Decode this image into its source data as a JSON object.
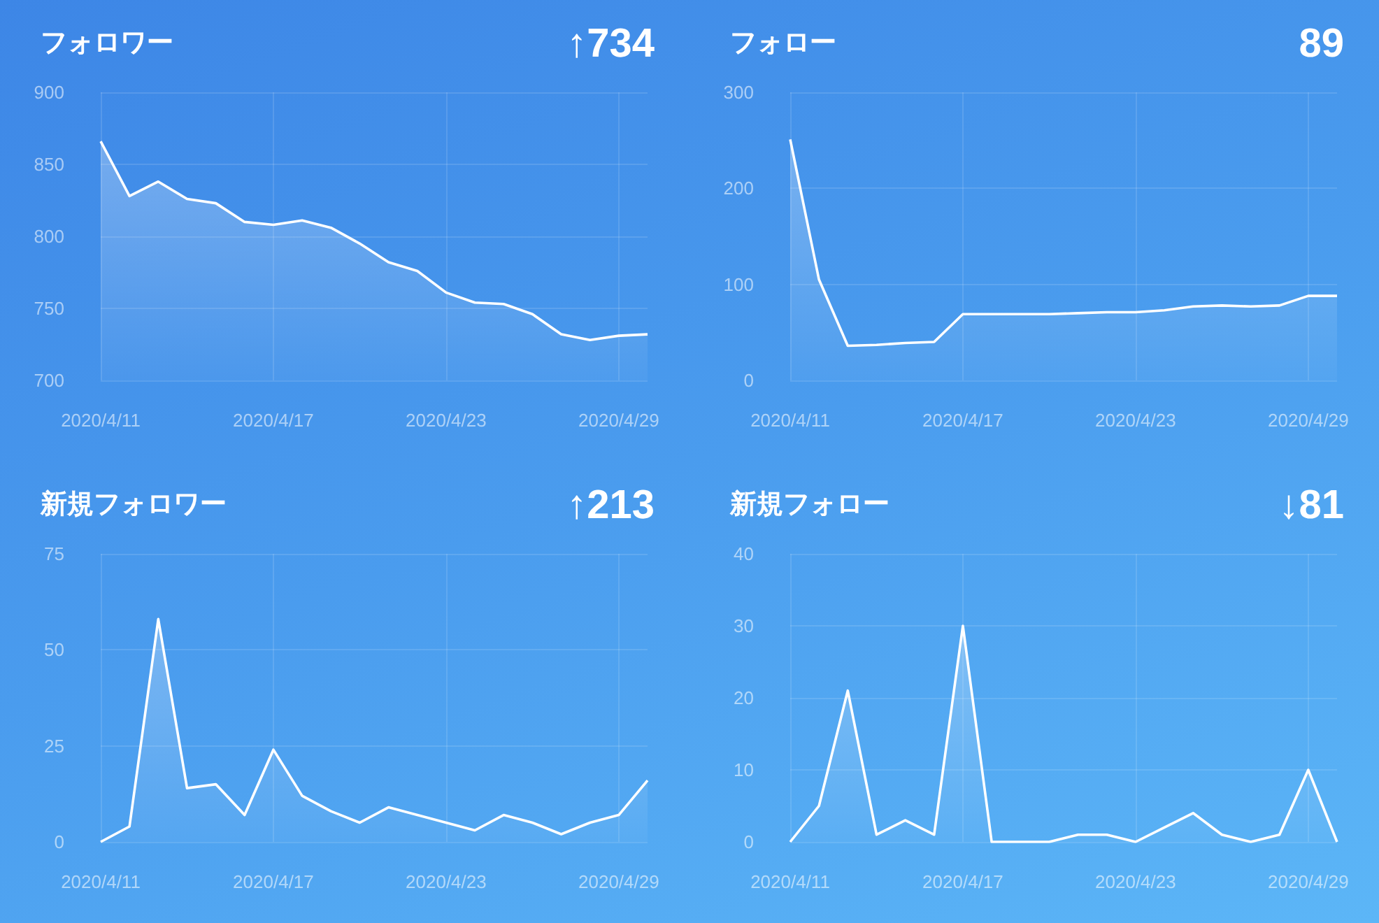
{
  "chart_data": [
    {
      "type": "area",
      "title": "フォロワー",
      "annotations": [
        "↑734"
      ],
      "categories": [
        "2020/4/11",
        null,
        null,
        null,
        null,
        null,
        "2020/4/17",
        null,
        null,
        null,
        null,
        null,
        "2020/4/23",
        null,
        null,
        null,
        null,
        null,
        "2020/4/29",
        null
      ],
      "series": [
        {
          "color": "#ffffff",
          "values": [
            866,
            828,
            838,
            826,
            823,
            810,
            808,
            811,
            806,
            795,
            782,
            776,
            761,
            754,
            753,
            746,
            732,
            728,
            731,
            732
          ]
        }
      ],
      "ylim": [
        700,
        900
      ],
      "yticks": [
        700,
        750,
        800,
        850,
        900
      ],
      "grid": true,
      "marker": "none"
    },
    {
      "type": "area",
      "title": "フォロー",
      "annotations": [
        "89"
      ],
      "categories": [
        "2020/4/11",
        null,
        null,
        null,
        null,
        null,
        "2020/4/17",
        null,
        null,
        null,
        null,
        null,
        "2020/4/23",
        null,
        null,
        null,
        null,
        null,
        "2020/4/29",
        null
      ],
      "series": [
        {
          "color": "#ffffff",
          "values": [
            251,
            105,
            36,
            37,
            39,
            40,
            69,
            69,
            69,
            69,
            70,
            71,
            71,
            73,
            77,
            78,
            77,
            78,
            88,
            88
          ]
        }
      ],
      "ylim": [
        0,
        300
      ],
      "yticks": [
        0,
        100,
        200,
        300
      ],
      "grid": true,
      "marker": "none"
    },
    {
      "type": "area",
      "title": "新規フォロワー",
      "annotations": [
        "↑213"
      ],
      "categories": [
        "2020/4/11",
        null,
        null,
        null,
        null,
        null,
        "2020/4/17",
        null,
        null,
        null,
        null,
        null,
        "2020/4/23",
        null,
        null,
        null,
        null,
        null,
        "2020/4/29",
        null
      ],
      "series": [
        {
          "color": "#ffffff",
          "values": [
            0,
            4,
            58,
            14,
            15,
            7,
            24,
            12,
            8,
            5,
            9,
            7,
            5,
            3,
            7,
            5,
            2,
            5,
            7,
            16
          ]
        }
      ],
      "ylim": [
        0,
        75
      ],
      "yticks": [
        0,
        25,
        50,
        75
      ],
      "grid": true,
      "marker": "none"
    },
    {
      "type": "area",
      "title": "新規フォロー",
      "annotations": [
        "↓81"
      ],
      "categories": [
        "2020/4/11",
        null,
        null,
        null,
        null,
        null,
        "2020/4/17",
        null,
        null,
        null,
        null,
        null,
        "2020/4/23",
        null,
        null,
        null,
        null,
        null,
        "2020/4/29",
        null
      ],
      "series": [
        {
          "color": "#ffffff",
          "values": [
            0,
            5,
            21,
            1,
            3,
            1,
            30,
            0,
            0,
            0,
            1,
            1,
            0,
            2,
            4,
            1,
            0,
            1,
            10,
            0
          ]
        }
      ],
      "ylim": [
        0,
        40
      ],
      "yticks": [
        0,
        10,
        20,
        30,
        40
      ],
      "grid": true,
      "marker": "none"
    }
  ]
}
